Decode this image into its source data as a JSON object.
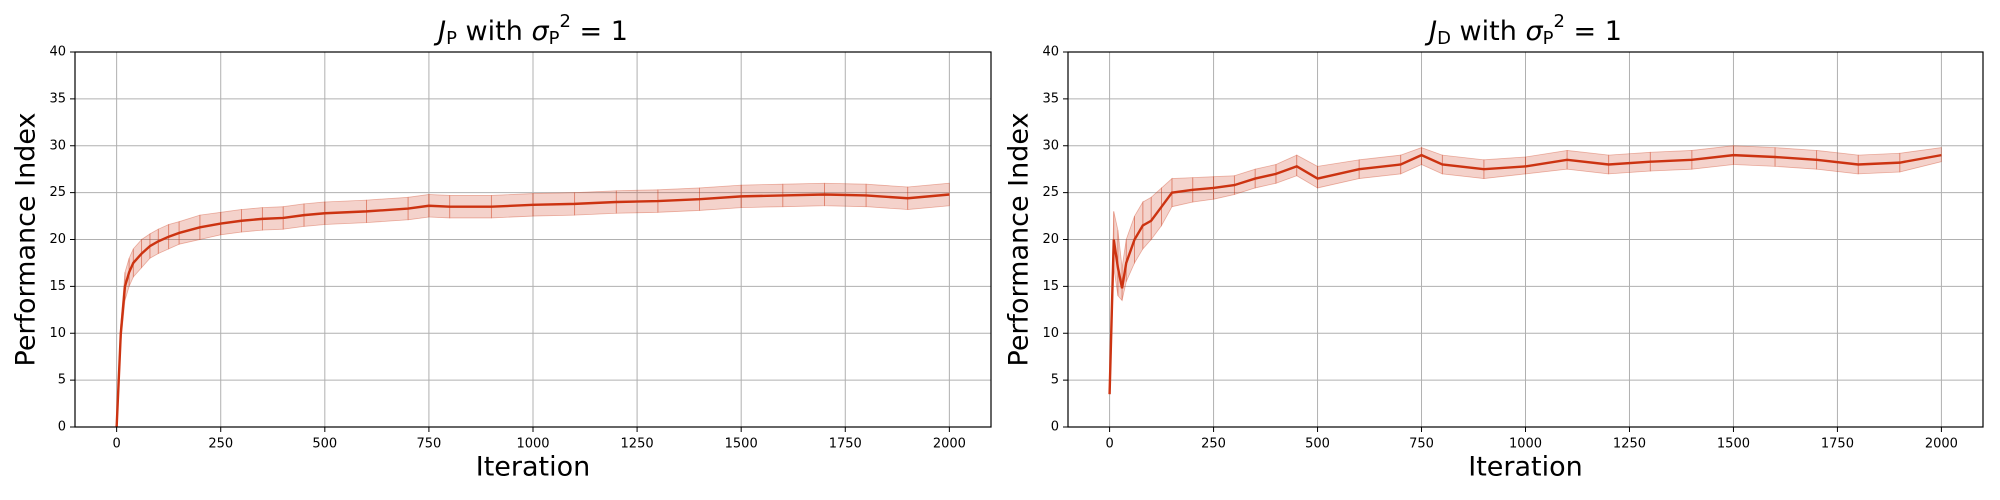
{
  "chart_data": [
    {
      "type": "line",
      "title": "J_P with σ_P^2 = 1",
      "xlabel": "Iteration",
      "ylabel": "Performance Index",
      "x": [
        0,
        10,
        20,
        30,
        40,
        60,
        80,
        100,
        125,
        150,
        200,
        250,
        300,
        350,
        400,
        450,
        500,
        600,
        700,
        750,
        800,
        900,
        1000,
        1100,
        1200,
        1300,
        1400,
        1500,
        1600,
        1700,
        1800,
        1900,
        2000
      ],
      "series": [
        {
          "color": "#cc3311",
          "values": [
            0,
            10,
            15,
            16.5,
            17.5,
            18.5,
            19.3,
            19.8,
            20.3,
            20.7,
            21.3,
            21.7,
            22,
            22.2,
            22.3,
            22.6,
            22.8,
            23,
            23.3,
            23.6,
            23.5,
            23.5,
            23.7,
            23.8,
            24,
            24.1,
            24.3,
            24.6,
            24.7,
            24.8,
            24.7,
            24.4,
            24.8
          ],
          "lower": [
            0,
            9,
            13.5,
            15,
            16,
            17,
            18,
            18.5,
            19,
            19.5,
            20,
            20.5,
            20.8,
            21,
            21.1,
            21.4,
            21.6,
            21.8,
            22.1,
            22.4,
            22.3,
            22.3,
            22.5,
            22.6,
            22.8,
            22.9,
            23.1,
            23.4,
            23.5,
            23.6,
            23.5,
            23.2,
            23.6
          ],
          "upper": [
            0,
            11,
            16.5,
            18,
            19,
            20,
            20.6,
            21.1,
            21.6,
            21.9,
            22.6,
            22.9,
            23.2,
            23.4,
            23.5,
            23.8,
            24,
            24.2,
            24.5,
            24.8,
            24.7,
            24.7,
            24.9,
            25,
            25.2,
            25.3,
            25.5,
            25.8,
            25.9,
            26,
            25.9,
            25.6,
            26
          ]
        }
      ],
      "xlim": [
        -100,
        2100
      ],
      "ylim": [
        0,
        40
      ],
      "xticks": [
        0,
        250,
        500,
        750,
        1000,
        1250,
        1500,
        1750,
        2000
      ],
      "yticks": [
        0,
        5,
        10,
        15,
        20,
        25,
        30,
        35,
        40
      ],
      "grid": true
    },
    {
      "type": "line",
      "title": "J_D with σ_P^2 = 1",
      "xlabel": "Iteration",
      "ylabel": "Performance Index",
      "x": [
        0,
        10,
        20,
        30,
        40,
        60,
        80,
        100,
        125,
        150,
        200,
        250,
        300,
        350,
        400,
        450,
        500,
        600,
        700,
        750,
        800,
        900,
        1000,
        1100,
        1200,
        1300,
        1400,
        1500,
        1600,
        1700,
        1800,
        1900,
        2000
      ],
      "series": [
        {
          "color": "#cc3311",
          "values": [
            3.5,
            20,
            17,
            14.8,
            17.5,
            20,
            21.5,
            22,
            23.5,
            25,
            25.3,
            25.5,
            25.8,
            26.5,
            27,
            27.8,
            26.5,
            27.5,
            28,
            29,
            28,
            27.5,
            27.8,
            28.5,
            28,
            28.3,
            28.5,
            29,
            28.8,
            28.5,
            28,
            28.2,
            29
          ],
          "lower": [
            3.5,
            17,
            14,
            13.5,
            15.5,
            17.5,
            19,
            20,
            21.5,
            23.5,
            24,
            24.3,
            24.8,
            25.5,
            26,
            26.8,
            25.5,
            26.5,
            27,
            28,
            27,
            26.5,
            27,
            27.5,
            27,
            27.3,
            27.5,
            28,
            27.8,
            27.5,
            27,
            27.2,
            28.3
          ],
          "upper": [
            3.5,
            23,
            21,
            17,
            20,
            22.5,
            24,
            24.5,
            25.5,
            26.5,
            26.6,
            26.7,
            26.8,
            27.5,
            28,
            29,
            27.8,
            28.5,
            29,
            29.8,
            29,
            28.5,
            28.8,
            29.5,
            29,
            29.3,
            29.5,
            30,
            29.8,
            29.5,
            29,
            29.2,
            29.8
          ]
        }
      ],
      "xlim": [
        -100,
        2100
      ],
      "ylim": [
        0,
        40
      ],
      "xticks": [
        0,
        250,
        500,
        750,
        1000,
        1250,
        1500,
        1750,
        2000
      ],
      "yticks": [
        0,
        5,
        10,
        15,
        20,
        25,
        30,
        35,
        40
      ],
      "grid": true
    }
  ]
}
